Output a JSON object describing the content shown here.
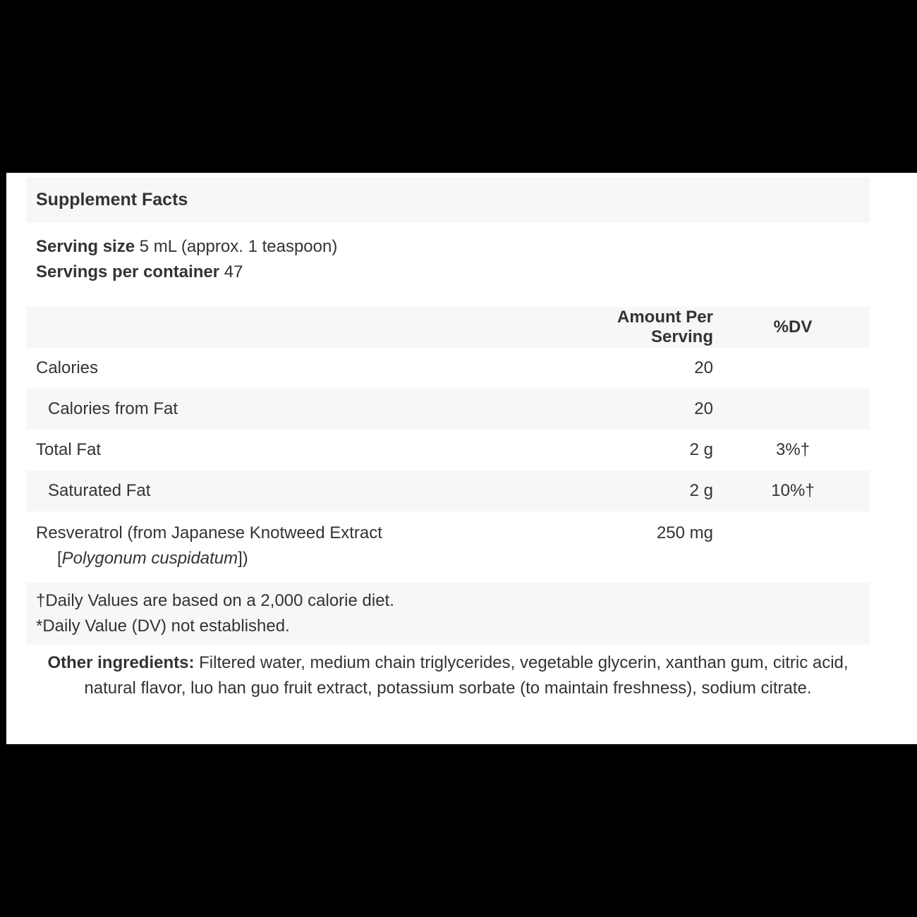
{
  "colors": {
    "background": "#000000",
    "panel": "#ffffff",
    "stripe": "#f7f7f7",
    "text": "#333333"
  },
  "header": {
    "title": "Supplement Facts"
  },
  "serving": {
    "size_label": "Serving size",
    "size_value": " 5 mL (approx. 1 teaspoon)",
    "per_container_label": "Servings per container",
    "per_container_value": " 47"
  },
  "table": {
    "columns": {
      "amount": "Amount Per Serving",
      "dv": "%DV"
    },
    "rows": [
      {
        "label": "Calories",
        "amount": "20",
        "dv": ""
      },
      {
        "label": "Calories from Fat",
        "amount": "20",
        "dv": ""
      },
      {
        "label": "Total Fat",
        "amount": "2 g",
        "dv": "3%†"
      },
      {
        "label": "Saturated Fat",
        "amount": "2 g",
        "dv": "10%†"
      },
      {
        "label_line1": "Resveratrol (from Japanese Knotweed Extract",
        "label_line2_pre": "[",
        "label_line2_italic": "Polygonum cuspidatum",
        "label_line2_post": "])",
        "amount": "250 mg",
        "dv": ""
      }
    ]
  },
  "footnotes": {
    "line1": "†Daily Values are based on a 2,000 calorie diet.",
    "line2": "*Daily Value (DV) not established."
  },
  "other_ingredients": {
    "label": "Other ingredients:",
    "text": " Filtered water, medium chain triglycerides, vegetable glycerin, xanthan gum, citric acid, natural flavor, luo han guo fruit extract, potassium sorbate (to maintain freshness), sodium citrate."
  }
}
